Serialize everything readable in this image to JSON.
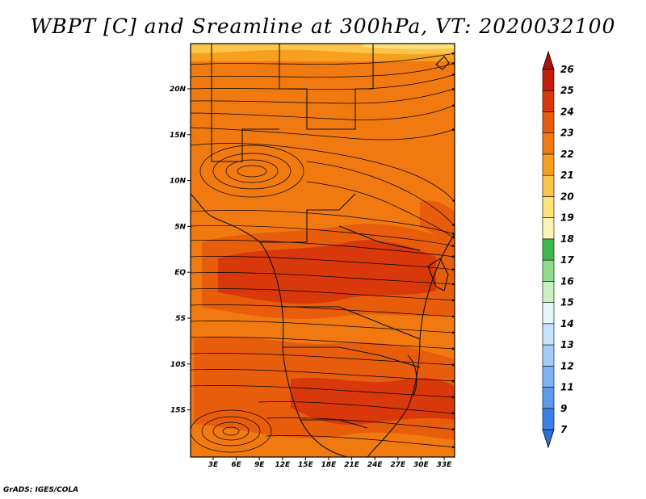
{
  "map": {
    "title": "WBPT [C] and Sreamline at 300hPa, VT: 2020032100",
    "credit": "GrADS: IGES/COLA",
    "variable": "Wet-bulb potential temperature",
    "units": "C",
    "level": "300hPa",
    "valid_time": "2020032100",
    "lat_labels": [
      "20N",
      "15N",
      "10N",
      "5N",
      "EQ",
      "5S",
      "10S",
      "15S"
    ],
    "lon_labels": [
      "3E",
      "6E",
      "9E",
      "12E",
      "15E",
      "18E",
      "21E",
      "24E",
      "27E",
      "30E",
      "33E"
    ]
  },
  "colorbar": {
    "labels": [
      "7",
      "9",
      "11",
      "12",
      "13",
      "14",
      "15",
      "16",
      "17",
      "18",
      "19",
      "20",
      "21",
      "22",
      "23",
      "24",
      "25",
      "26"
    ],
    "colors": [
      "#2a6fd9",
      "#3b82e6",
      "#5a9bf0",
      "#7fb4f5",
      "#a3cdf8",
      "#c6e2fb",
      "#e6f5f8",
      "#c8f0c0",
      "#8fdc8a",
      "#3fb84a",
      "#fcf3b0",
      "#fde27a",
      "#fbc44a",
      "#f7a020",
      "#f07a10",
      "#e85d0c",
      "#d8380a",
      "#c41f0a",
      "#a8140a"
    ]
  }
}
